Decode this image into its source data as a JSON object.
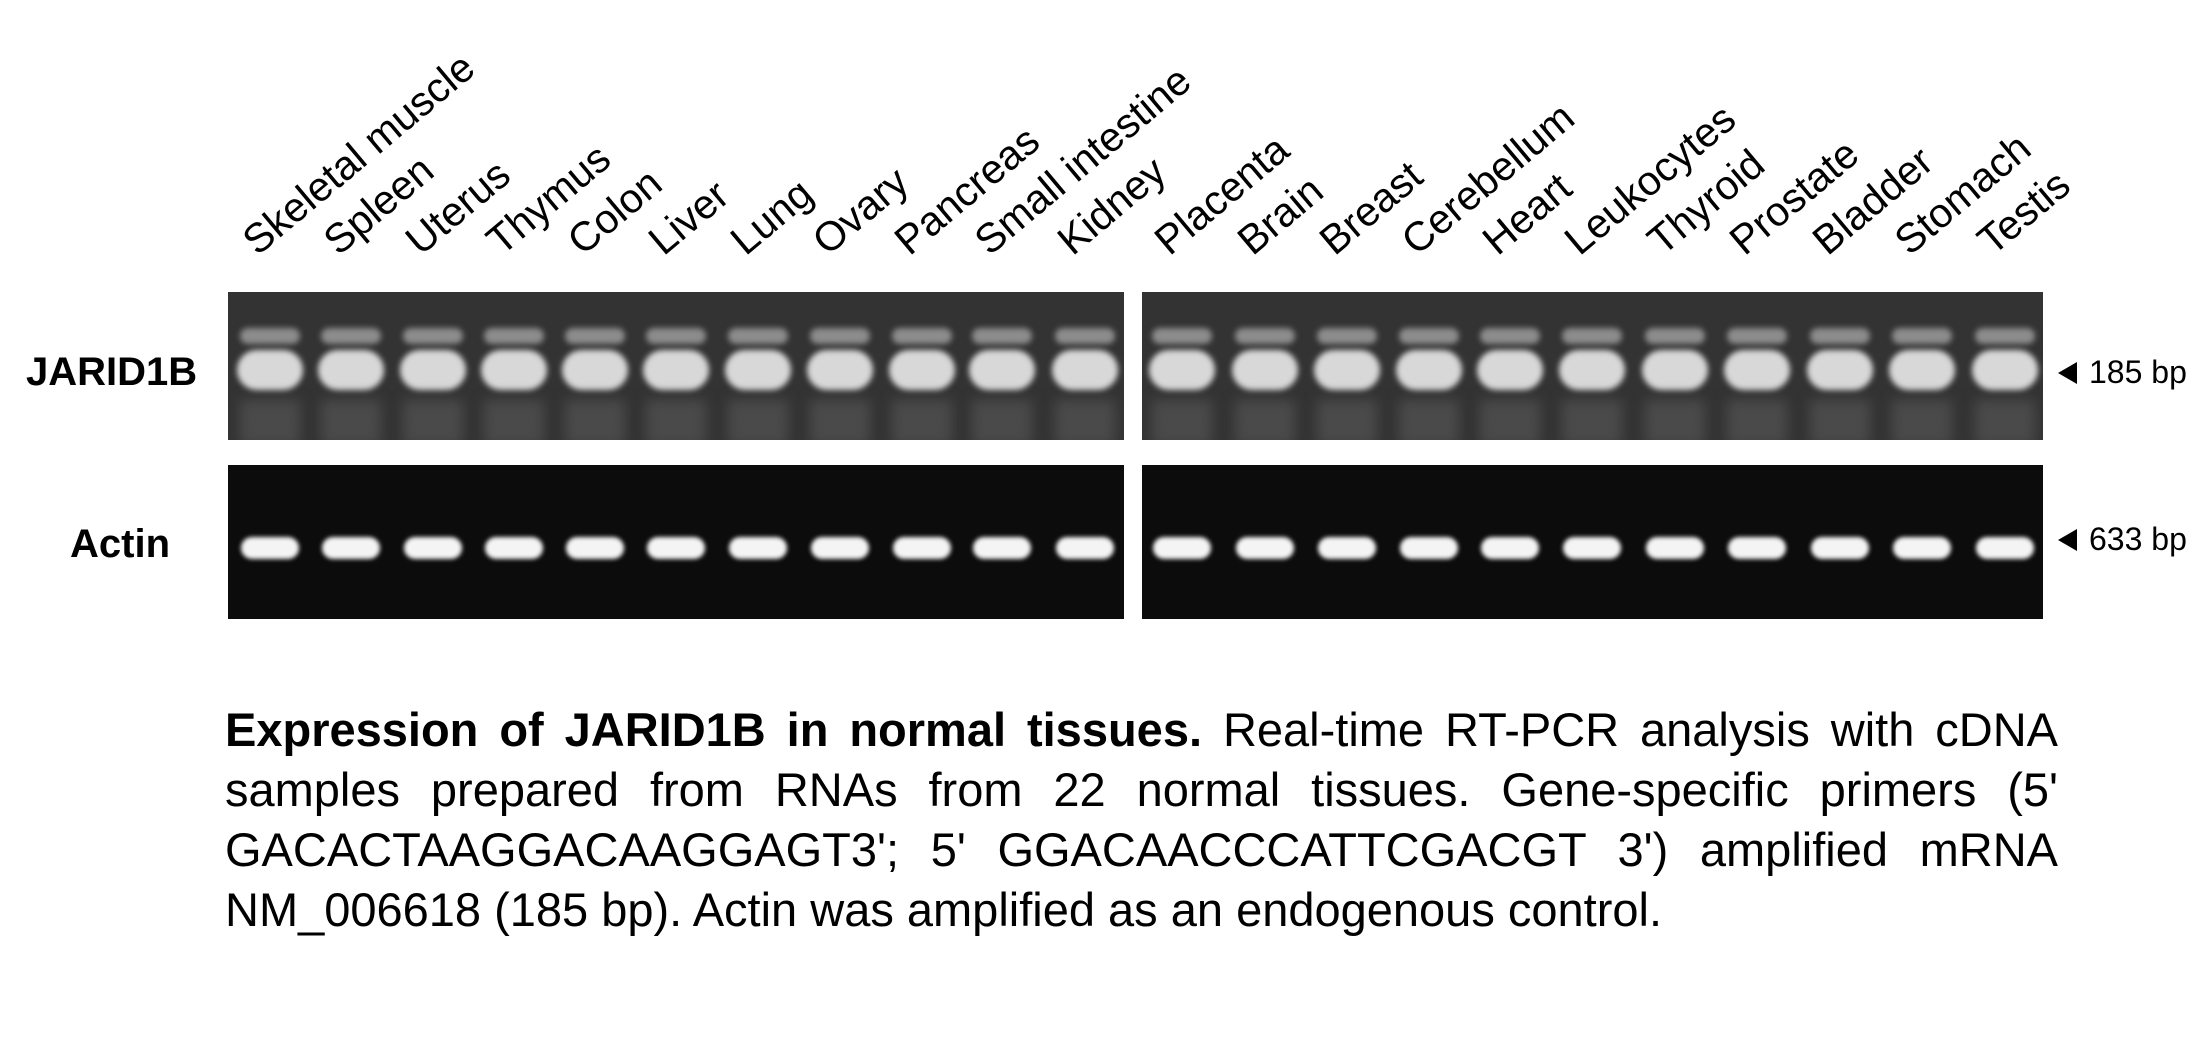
{
  "lanes": [
    "Skeletal muscle",
    "Spleen",
    "Uterus",
    "Thymus",
    "Colon",
    "Liver",
    "Lung",
    "Ovary",
    "Pancreas",
    "Small intestine",
    "Kidney",
    "Placenta",
    "Brain",
    "Breast",
    "Cerebellum",
    "Heart",
    "Leukocytes",
    "Thyroid",
    "Prostate",
    "Bladder",
    "Stomach",
    "Testis"
  ],
  "rows": [
    {
      "label": "JARID1B",
      "size": "185 bp"
    },
    {
      "label": "Actin",
      "size": "633 bp"
    }
  ],
  "caption": {
    "title": "Expression of JARID1B in normal tissues.",
    "text": "Real-time RT-PCR analysis with cDNA samples prepared from RNAs from 22 normal tissues. Gene-specific primers (5' GACACTAAGGACAAGGAGT3'; 5' GGACAACCCATTCGACGT 3') amplified mRNA NM_006618 (185 bp). Actin was amplified as an endogenous control."
  }
}
